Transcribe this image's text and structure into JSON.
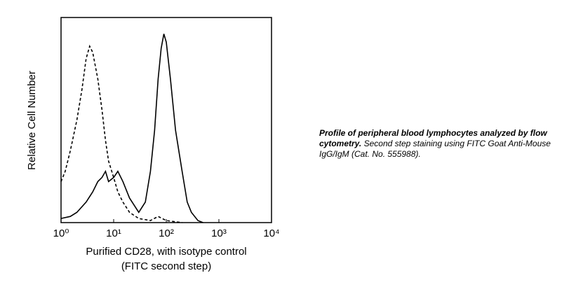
{
  "chart_data": {
    "type": "line",
    "xlabel": [
      "Purified CD28, with isotype control",
      "(FITC second step)"
    ],
    "ylabel": "Relative Cell Number",
    "xscale": "log",
    "xlim": [
      1,
      10000
    ],
    "xticks": [
      {
        "value": 1,
        "label": "10⁰"
      },
      {
        "value": 10,
        "label": "10¹"
      },
      {
        "value": 100,
        "label": "10²"
      },
      {
        "value": 1000,
        "label": "10³"
      },
      {
        "value": 10000,
        "label": "10⁴"
      }
    ],
    "ylim": [
      0,
      100
    ],
    "series": [
      {
        "color": "#000000",
        "line_style": "solid",
        "x": [
          1,
          1.5,
          2,
          3,
          4,
          5,
          6,
          7,
          8,
          10,
          12,
          15,
          20,
          30,
          40,
          50,
          60,
          70,
          80,
          90,
          100,
          120,
          150,
          200,
          250,
          300,
          400,
          500
        ],
        "values": [
          2,
          3,
          5,
          10,
          15,
          20,
          22,
          25,
          20,
          22,
          25,
          20,
          12,
          5,
          10,
          25,
          45,
          70,
          85,
          92,
          88,
          70,
          45,
          25,
          10,
          5,
          1,
          0
        ]
      },
      {
        "color": "#000000",
        "line_style": "dashed",
        "x": [
          1,
          1.2,
          1.5,
          2,
          2.5,
          3,
          3.5,
          4,
          5,
          6,
          7,
          8,
          10,
          12,
          15,
          20,
          30,
          50,
          70,
          100,
          200
        ],
        "values": [
          20,
          25,
          35,
          50,
          65,
          80,
          86,
          83,
          70,
          55,
          40,
          30,
          22,
          15,
          10,
          5,
          2,
          1,
          3,
          1,
          0
        ]
      }
    ],
    "caption": {
      "bold": "Profile of peripheral blood lymphocytes analyzed by flow cytometry.",
      "text": "Second step staining using FITC Goat Anti-Mouse IgG/IgM (Cat. No. 555988)."
    }
  }
}
